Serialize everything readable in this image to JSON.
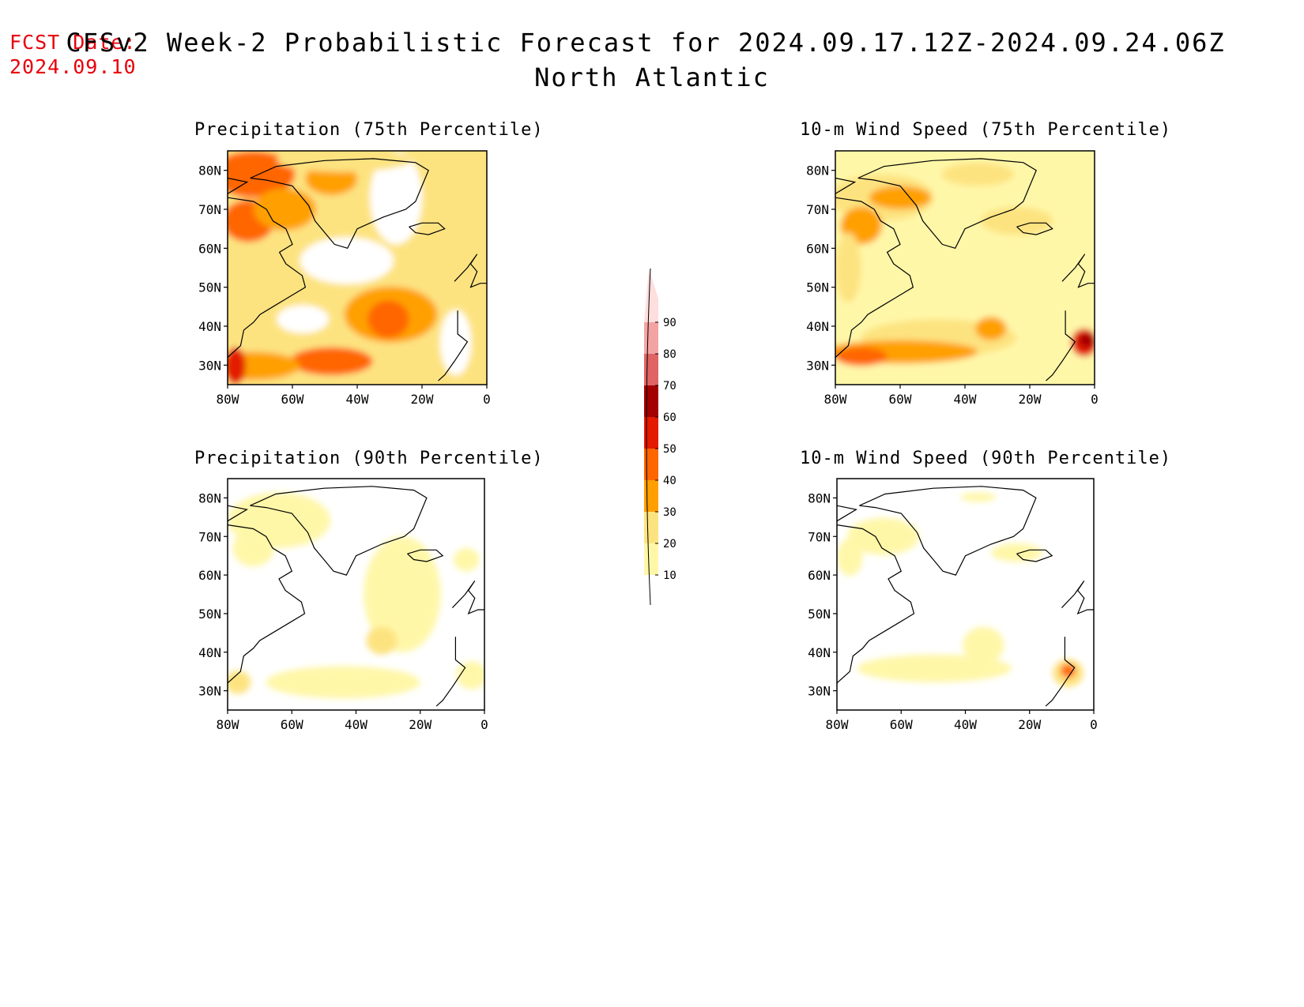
{
  "fcst_date": {
    "label": "FCST Date:",
    "value": "2024.09.10"
  },
  "title": {
    "line1": "CFSv2 Week-2 Probabilistic Forecast for 2024.09.17.12Z-2024.09.24.06Z",
    "line2": "North Atlantic"
  },
  "panels": [
    {
      "id": "precip75",
      "title": "Precipitation (75th Percentile)"
    },
    {
      "id": "wind75",
      "title": "10-m Wind Speed (75th Percentile)"
    },
    {
      "id": "precip90",
      "title": "Precipitation (90th Percentile)"
    },
    {
      "id": "wind90",
      "title": "10-m Wind Speed (90th Percentile)"
    }
  ],
  "axes": {
    "lat_labels": [
      "80N",
      "70N",
      "60N",
      "50N",
      "40N",
      "30N"
    ],
    "lon_labels": [
      "80W",
      "60W",
      "40W",
      "20W",
      "0"
    ]
  },
  "colorbar": {
    "levels": [
      "10",
      "20",
      "30",
      "40",
      "50",
      "60",
      "70",
      "80",
      "90"
    ],
    "colors": [
      "#fff7a8",
      "#fde380",
      "#ffa000",
      "#ff6600",
      "#e31a00",
      "#a30000",
      "#e06464",
      "#f4a3a3",
      "#ffdede"
    ]
  }
}
